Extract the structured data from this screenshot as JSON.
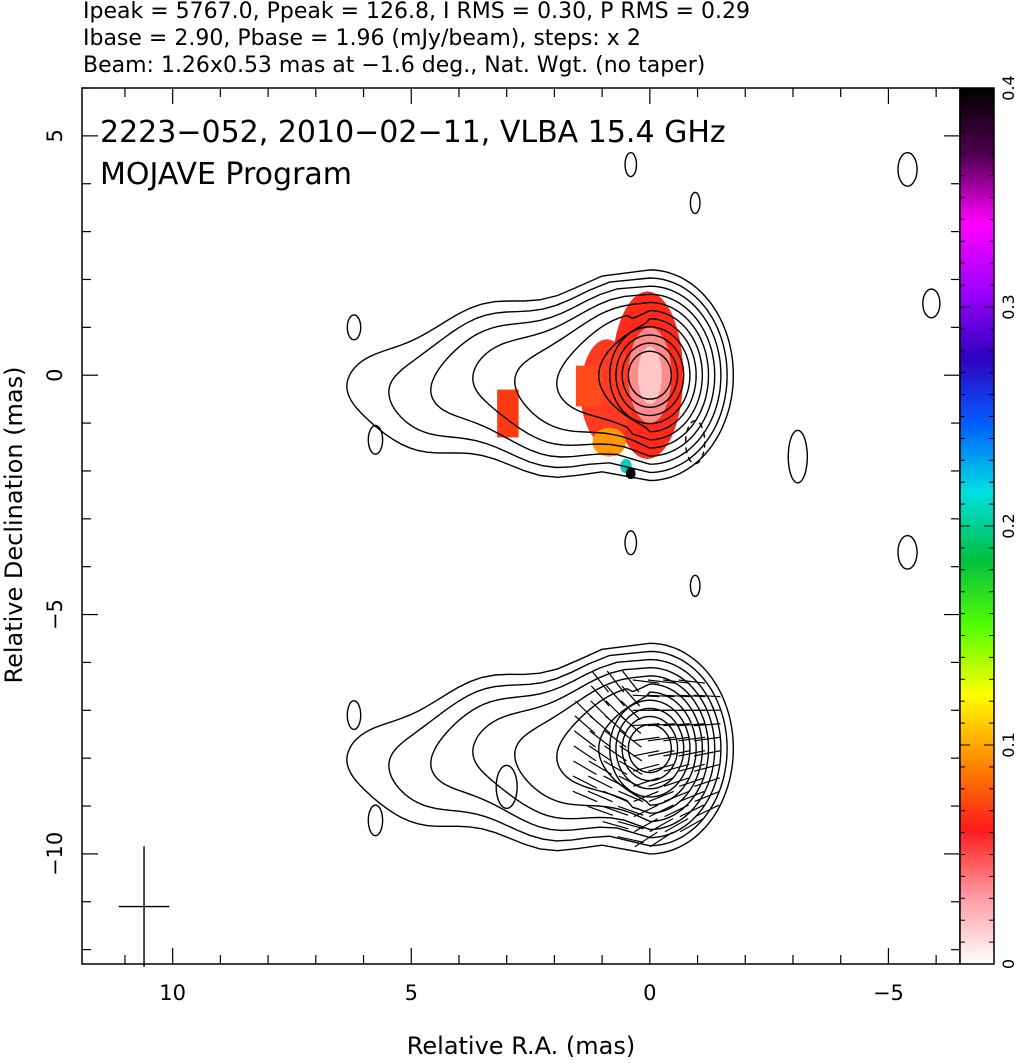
{
  "header": {
    "line1": "Ipeak = 5767.0, Ppeak = 126.8, I RMS = 0.30, P RMS = 0.29",
    "line2": "Ibase = 2.90, Pbase = 1.96 (mJy/beam), steps: x 2",
    "line3": "Beam: 1.26x0.53 mas at −1.6 deg., Nat. Wgt. (no taper)"
  },
  "chart_data": {
    "type": "heatmap",
    "title_line1": "2223−052, 2010−02−11, VLBA 15.4 GHz",
    "title_line2": "MOJAVE Program",
    "xlabel": "Relative R.A. (mas)",
    "ylabel": "Relative Declination (mas)",
    "xlim": [
      11.9,
      -6.5
    ],
    "ylim": [
      -12.3,
      6.0
    ],
    "x_ticks": [
      10,
      5,
      0,
      -5
    ],
    "x_tick_labels": [
      "10",
      "5",
      "0",
      "−5"
    ],
    "y_ticks": [
      5,
      0,
      -5,
      -10
    ],
    "y_tick_labels": [
      "5",
      "0",
      "−5",
      "−10"
    ],
    "colorbar": {
      "range": [
        0,
        0.4
      ],
      "ticks": [
        0,
        0.1,
        0.2,
        0.3,
        0.4
      ],
      "tick_labels": [
        "0",
        "0.1",
        "0.2",
        "0.3",
        "0.4"
      ],
      "colors": [
        "#ffffff",
        "#ff9aa2",
        "#ff1a1a",
        "#ff8a00",
        "#ffff00",
        "#55ff00",
        "#00c040",
        "#00e0e0",
        "#0060ff",
        "#3000c0",
        "#a000ff",
        "#ff00ff",
        "#500050",
        "#000000"
      ]
    },
    "panels": [
      {
        "name": "total intensity with fractional polarization",
        "core": [
          0.0,
          0.0
        ],
        "contour_levels_mJy": [
          2.9,
          5.8,
          11.6,
          23.2,
          46.4,
          92.8,
          185.6,
          371.2,
          742.4,
          1484.8,
          2969.6
        ],
        "fractional_polarization_region": {
          "x": [
            -0.7,
            1.6
          ],
          "y": [
            -1.8,
            1.8
          ],
          "typical_value": 0.06
        },
        "features": [
          {
            "x": 3.0,
            "y": -0.8,
            "value": 0.08
          },
          {
            "x": 0.5,
            "y": -1.9,
            "value": 0.4
          }
        ]
      },
      {
        "name": "polarized intensity with EVPA sticks",
        "core": [
          0.0,
          -7.8
        ]
      }
    ],
    "beam": {
      "major_mas": 1.26,
      "minor_mas": 0.53,
      "pa_deg": -1.6,
      "center": [
        10.6,
        -11.1
      ]
    }
  }
}
